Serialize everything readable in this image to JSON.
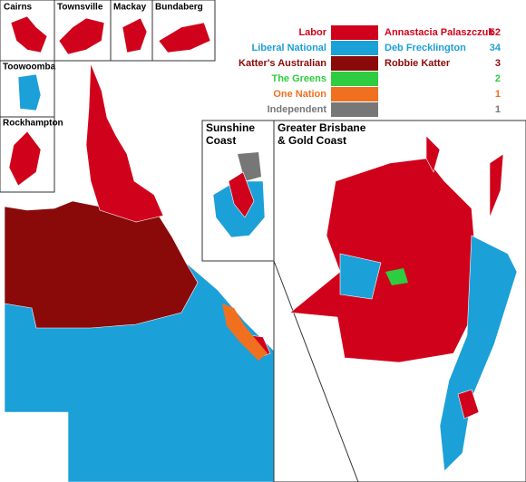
{
  "insets": {
    "cairns": "Cairns",
    "townsville": "Townsville",
    "mackay": "Mackay",
    "bundaberg": "Bundaberg",
    "toowoomba": "Toowoomba",
    "rockhampton": "Rockhampton",
    "sunshine_coast": [
      "Sunshine",
      "Coast"
    ],
    "brisbane": [
      "Greater Brisbane",
      "& Gold Coast"
    ]
  },
  "legend": [
    {
      "party": "Labor",
      "leader": "Annastacia Palaszczuk",
      "seats": 52,
      "color": "#d0021b"
    },
    {
      "party": "Liberal National",
      "leader": "Deb Frecklington",
      "seats": 34,
      "color": "#1ca0d8"
    },
    {
      "party": "Katter's Australian",
      "leader": "Robbie Katter",
      "seats": 3,
      "color": "#8a0a0a"
    },
    {
      "party": "The Greens",
      "seats": 2,
      "color": "#2ecc40"
    },
    {
      "party": "One Nation",
      "seats": 1,
      "color": "#f07020"
    },
    {
      "party": "Independent",
      "seats": 1,
      "color": "#777777"
    }
  ]
}
